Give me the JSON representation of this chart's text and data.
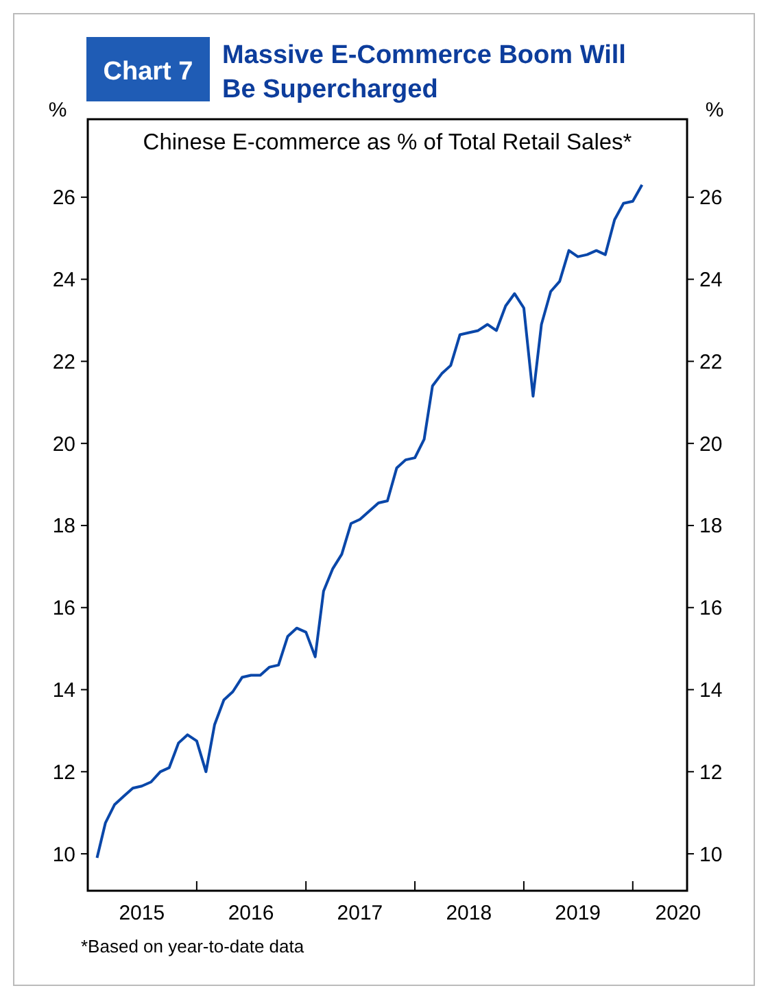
{
  "chart_data": {
    "type": "line",
    "title": "Massive E-Commerce Boom Will Be Supercharged",
    "subtitle": "Chinese E-commerce as % of Total Retail Sales*",
    "ylabel": "%",
    "y2label": "%",
    "annotations": [
      "Chart 7",
      "*Based on year-to-date data"
    ],
    "x": [
      "2015-02",
      "2015-03",
      "2015-04",
      "2015-05",
      "2015-06",
      "2015-07",
      "2015-08",
      "2015-09",
      "2015-10",
      "2015-11",
      "2015-12",
      "2016-01",
      "2016-02",
      "2016-03",
      "2016-04",
      "2016-05",
      "2016-06",
      "2016-07",
      "2016-08",
      "2016-09",
      "2016-10",
      "2016-11",
      "2016-12",
      "2017-01",
      "2017-02",
      "2017-03",
      "2017-04",
      "2017-05",
      "2017-06",
      "2017-07",
      "2017-08",
      "2017-09",
      "2017-10",
      "2017-11",
      "2017-12",
      "2018-01",
      "2018-02",
      "2018-03",
      "2018-04",
      "2018-05",
      "2018-06",
      "2018-07",
      "2018-08",
      "2018-09",
      "2018-10",
      "2018-11",
      "2018-12",
      "2019-01",
      "2019-02",
      "2019-03",
      "2019-04",
      "2019-05",
      "2019-06",
      "2019-07",
      "2019-08",
      "2019-09",
      "2019-10",
      "2019-11",
      "2019-12",
      "2020-01",
      "2020-02"
    ],
    "series": [
      {
        "color": "#0a47a9",
        "values": [
          9.9,
          10.75,
          11.2,
          11.4,
          11.6,
          11.65,
          11.75,
          12.0,
          12.1,
          12.7,
          12.9,
          12.75,
          12.0,
          13.15,
          13.75,
          13.95,
          14.3,
          14.35,
          14.35,
          14.55,
          14.6,
          15.3,
          15.5,
          15.4,
          14.8,
          16.4,
          16.95,
          17.3,
          18.05,
          18.15,
          18.35,
          18.55,
          18.6,
          19.4,
          19.6,
          19.65,
          20.1,
          21.4,
          21.7,
          21.9,
          22.65,
          22.7,
          22.75,
          22.9,
          22.75,
          23.35,
          23.65,
          23.3,
          21.15,
          22.9,
          23.7,
          23.95,
          24.7,
          24.55,
          24.6,
          24.7,
          24.6,
          25.45,
          25.85,
          25.9,
          26.3
        ]
      }
    ],
    "xlim": [
      "2015-01",
      "2020-07"
    ],
    "xticks": [
      {
        "value": "2015-07",
        "label": "2015"
      },
      {
        "value": "2016-01",
        "label": null
      },
      {
        "value": "2016-07",
        "label": "2016"
      },
      {
        "value": "2017-01",
        "label": null
      },
      {
        "value": "2017-07",
        "label": "2017"
      },
      {
        "value": "2018-01",
        "label": null
      },
      {
        "value": "2018-07",
        "label": "2018"
      },
      {
        "value": "2019-01",
        "label": null
      },
      {
        "value": "2019-07",
        "label": "2019"
      },
      {
        "value": "2020-01",
        "label": null
      },
      {
        "value": "2020-06",
        "label": "2020"
      }
    ],
    "ylim": [
      9.1,
      27.9
    ],
    "yticks": [
      10,
      12,
      14,
      16,
      18,
      20,
      22,
      24,
      26
    ],
    "y2lim": [
      9.1,
      27.9
    ],
    "y2ticks": [
      10,
      12,
      14,
      16,
      18,
      20,
      22,
      24,
      26
    ],
    "grid": false,
    "line_style": "solid",
    "marker": "none"
  }
}
